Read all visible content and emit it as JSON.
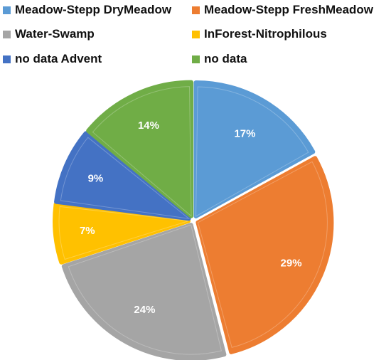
{
  "chart_data": {
    "type": "pie",
    "title": "",
    "legend_position": "top",
    "categories": [
      "Meadow-Stepp DryMeadow",
      "Meadow-Stepp FreshMeadow",
      "Water-Swamp",
      "InForest-Nitrophilous",
      "no data Advent",
      "no data"
    ],
    "values": [
      17,
      29,
      24,
      7,
      9,
      14
    ],
    "labels": [
      "17%",
      "29%",
      "24%",
      "7%",
      "9%",
      "14%"
    ],
    "colors": [
      "#5B9BD5",
      "#ED7D31",
      "#A5A5A5",
      "#FFC000",
      "#4472C4",
      "#70AD47"
    ]
  }
}
